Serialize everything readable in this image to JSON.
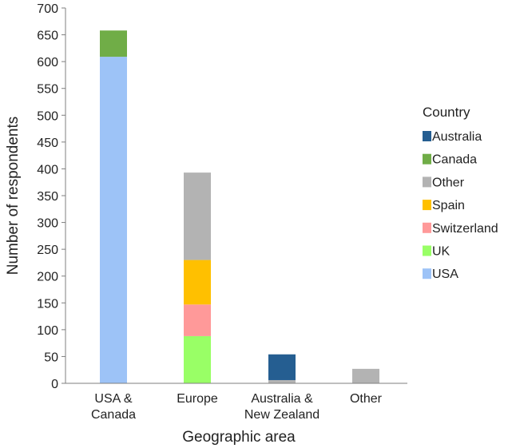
{
  "chart_data": {
    "type": "bar",
    "stacked": true,
    "xlabel": "Geographic area",
    "ylabel": "Number of respondents",
    "ylim": [
      0,
      700
    ],
    "yticks": [
      0,
      50,
      100,
      150,
      200,
      250,
      300,
      350,
      400,
      450,
      500,
      550,
      600,
      650,
      700
    ],
    "categories": [
      [
        "USA &",
        "Canada"
      ],
      [
        "Europe"
      ],
      [
        "Australia &",
        "New Zealand"
      ],
      [
        "Other"
      ]
    ],
    "legend": {
      "title": "Country",
      "placement": "right"
    },
    "grid": false,
    "series": [
      {
        "name": "USA",
        "color": "#9dc3f7",
        "values": [
          609,
          0,
          0,
          0
        ]
      },
      {
        "name": "UK",
        "color": "#99ff66",
        "values": [
          0,
          88,
          0,
          0
        ]
      },
      {
        "name": "Switzerland",
        "color": "#ff9999",
        "values": [
          0,
          59,
          0,
          0
        ]
      },
      {
        "name": "Spain",
        "color": "#ffc000",
        "values": [
          0,
          83,
          0,
          0
        ]
      },
      {
        "name": "Other",
        "color": "#b3b3b3",
        "values": [
          0,
          163,
          6,
          27
        ]
      },
      {
        "name": "Canada",
        "color": "#70ad47",
        "values": [
          49,
          0,
          0,
          0
        ]
      },
      {
        "name": "Australia",
        "color": "#255e91",
        "values": [
          0,
          0,
          48,
          0
        ]
      }
    ],
    "legend_order": [
      "Australia",
      "Canada",
      "Other",
      "Spain",
      "Switzerland",
      "UK",
      "USA"
    ]
  }
}
